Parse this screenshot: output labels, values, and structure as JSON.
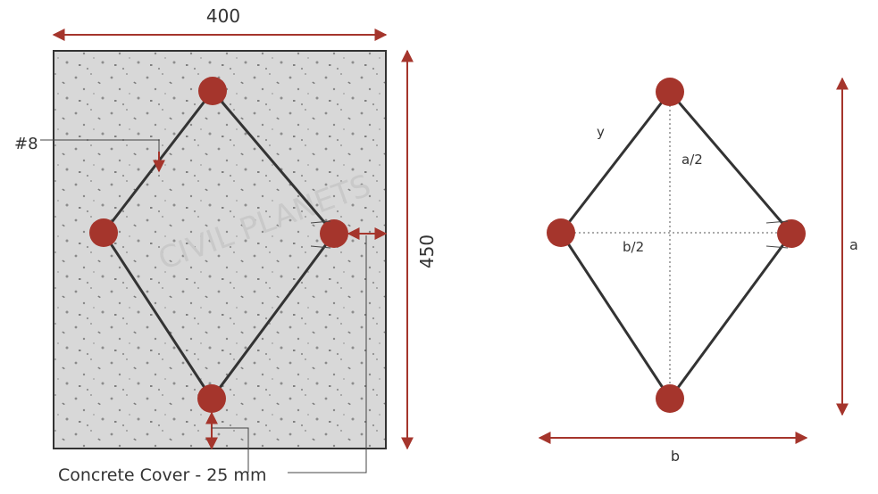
{
  "left_diagram": {
    "width_label": "400",
    "height_label": "450",
    "bar_label": "#8",
    "cover_label": "Concrete Cover - 25 mm",
    "watermark": "CIVIL PLANETS"
  },
  "right_diagram": {
    "side_label": "y",
    "half_height_label": "a/2",
    "half_width_label": "b/2",
    "height_label": "a",
    "width_label": "b"
  }
}
